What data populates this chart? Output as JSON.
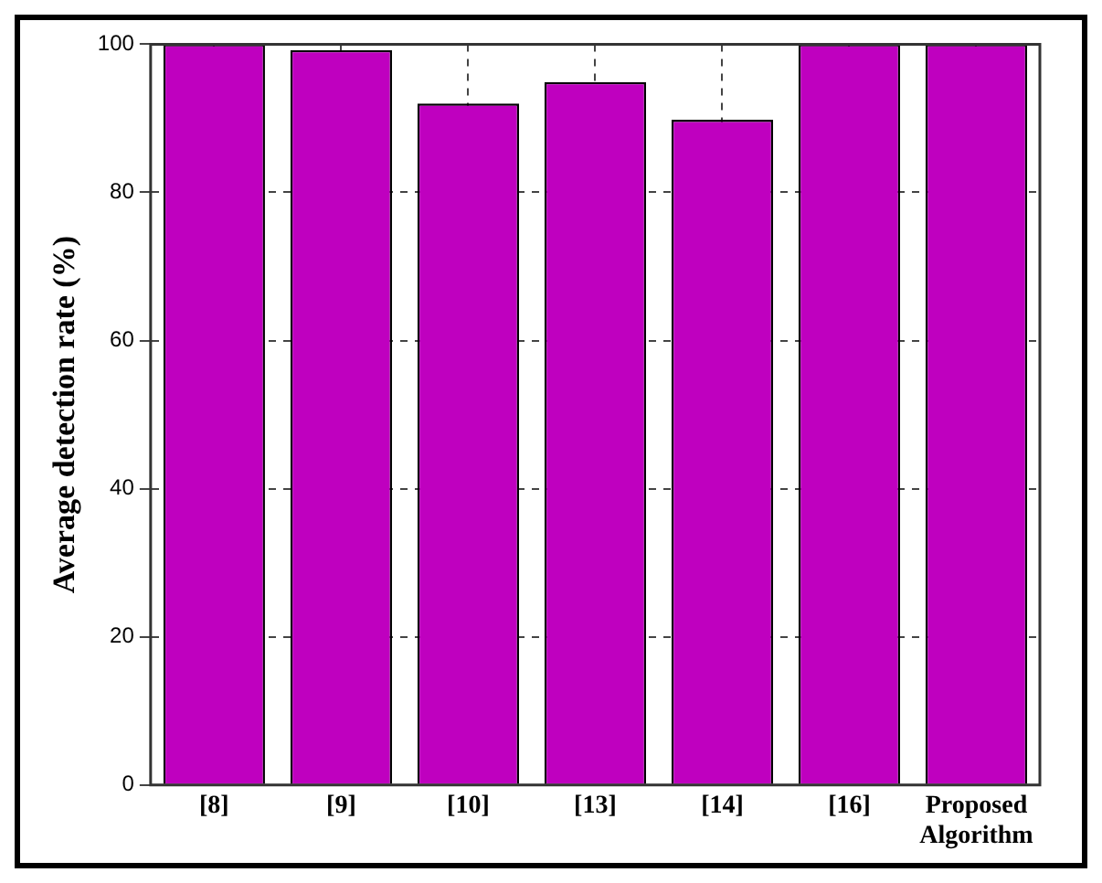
{
  "chart_data": {
    "type": "bar",
    "ylabel": "Average detection rate (%)",
    "categories": [
      "[8]",
      "[9]",
      "[10]",
      "[13]",
      "[14]",
      "[16]",
      "Proposed Algorithm"
    ],
    "values": [
      100,
      99.2,
      92,
      94.9,
      89.8,
      100,
      100
    ],
    "color": "#bf00bf",
    "ylim": [
      0,
      100
    ],
    "yticks": [
      0,
      20,
      40,
      60,
      80,
      100
    ],
    "grid": true
  }
}
